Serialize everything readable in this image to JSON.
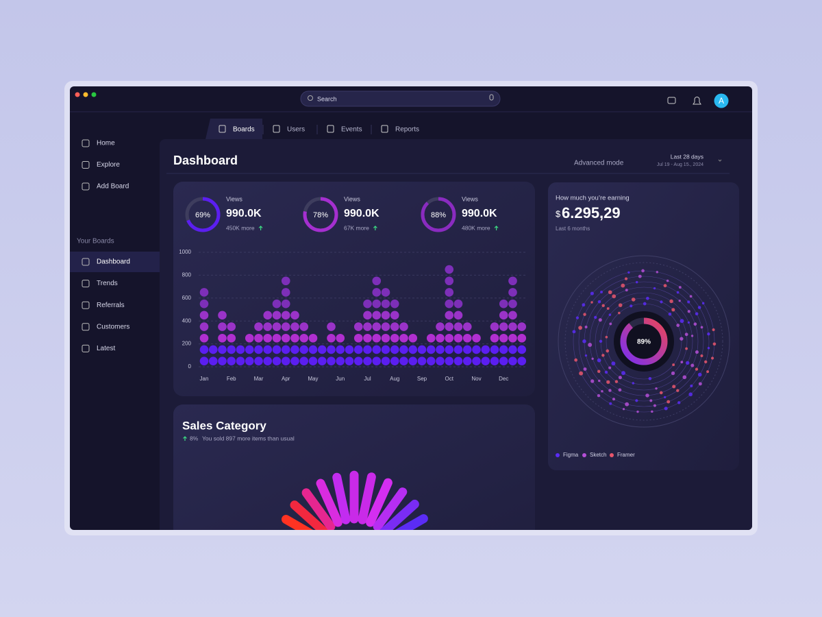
{
  "window": {
    "search": "Search",
    "avatar": "A"
  },
  "sidebar": {
    "nav": [
      "Home",
      "Explore",
      "Add Board"
    ],
    "section": "Your Boards",
    "boards": [
      "Dashboard",
      "Trends",
      "Referrals",
      "Customers",
      "Latest"
    ]
  },
  "tabs": [
    "Boards",
    "Users",
    "Events",
    "Reports"
  ],
  "header": {
    "title": "Dashboard",
    "mode": "Advanced mode",
    "range": "Last 28 days",
    "dates": "Jul 19 - Aug 15., 2024"
  },
  "stats": [
    {
      "percent": 69,
      "percent_label": "69%",
      "label": "Views",
      "value": "990.0K",
      "change": "450K more"
    },
    {
      "percent": 78,
      "percent_label": "78%",
      "label": "Views",
      "value": "990.0K",
      "change": "67K more"
    },
    {
      "percent": 88,
      "percent_label": "88%",
      "label": "Views",
      "value": "990.0K",
      "change": "480K more"
    }
  ],
  "dot_chart": {
    "categories": [
      "Jan",
      "Feb",
      "Mar",
      "Apr",
      "May",
      "Jun",
      "Jul",
      "Aug",
      "Sep",
      "Oct",
      "Nov",
      "Dec"
    ],
    "values": [
      700,
      200,
      500,
      400,
      200,
      300,
      400,
      500,
      600,
      800,
      500,
      400,
      300,
      200,
      400,
      300,
      200,
      400,
      600,
      800,
      700,
      600,
      400,
      300,
      200,
      300,
      400,
      900,
      600,
      400,
      300,
      200,
      400,
      600,
      800,
      400
    ],
    "ylim": [
      0,
      1000
    ],
    "yticks": [
      0,
      200,
      400,
      600,
      800,
      1000
    ]
  },
  "earning": {
    "title": "How much you’re earning",
    "currency": "$",
    "amount": "6.295,29",
    "period": "Last 6 months",
    "ring_percent": 89,
    "ring_label": "89%",
    "legend": [
      {
        "name": "Figma",
        "color": "#5b2cf5"
      },
      {
        "name": "Sketch",
        "color": "#b44fd6"
      },
      {
        "name": "Framer",
        "color": "#e8566c"
      }
    ]
  },
  "sales": {
    "title": "Sales Category",
    "change": "8%",
    "note": "You sold 897 more items than usual"
  }
}
